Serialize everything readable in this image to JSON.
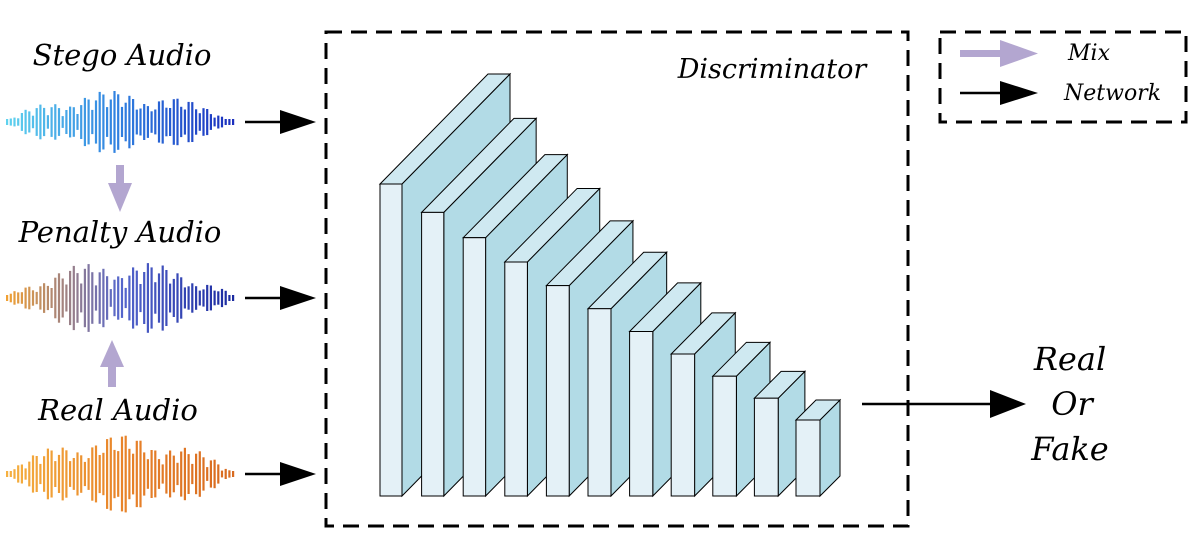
{
  "inputs": [
    {
      "label": "Stego Audio",
      "palette": [
        "#5fd2ee",
        "#2f7fe0",
        "#1b2fbe"
      ]
    },
    {
      "label": "Penalty Audio",
      "palette": [
        "#f0a033",
        "#5566cc",
        "#1a2aa0"
      ]
    },
    {
      "label": "Real Audio",
      "palette": [
        "#f5b040",
        "#e8842a",
        "#d86a20"
      ]
    }
  ],
  "discriminator": {
    "label": "Discriminator",
    "layer_count": 11,
    "face_color": "#e4f1f7",
    "side_color": "#b2dbe6",
    "top_color": "#cfe9f1"
  },
  "legend": {
    "mix_label": "Mix",
    "network_label": "Network",
    "mix_color": "#b3a6d0",
    "network_color": "#000000"
  },
  "output": {
    "line1": "Real",
    "line2": "Or",
    "line3": "Fake"
  }
}
